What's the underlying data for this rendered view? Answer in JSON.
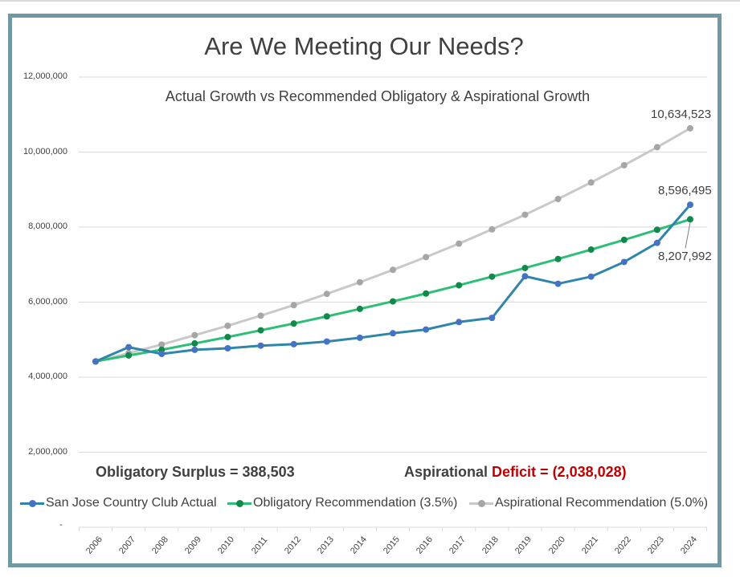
{
  "chart_data": {
    "type": "line",
    "title": "Are We Meeting Our Needs?",
    "subtitle": "Actual Growth vs Recommended Obligatory & Aspirational Growth",
    "xlabel": "",
    "ylabel": "",
    "ylim": [
      0,
      12000000
    ],
    "grid": true,
    "legend_position": "bottom",
    "categories": [
      "2006",
      "2007",
      "2008",
      "2009",
      "2010",
      "2011",
      "2012",
      "2013",
      "2014",
      "2015",
      "2016",
      "2017",
      "2018",
      "2019",
      "2020",
      "2021",
      "2022",
      "2023",
      "2024"
    ],
    "yticks": [
      {
        "value": 2000000,
        "label": "2,000,000"
      },
      {
        "value": 4000000,
        "label": "4,000,000"
      },
      {
        "value": 6000000,
        "label": "6,000,000"
      },
      {
        "value": 8000000,
        "label": "8,000,000"
      },
      {
        "value": 10000000,
        "label": "10,000,000"
      },
      {
        "value": 12000000,
        "label": "12,000,000"
      }
    ],
    "zero_tick_label": "-",
    "series": [
      {
        "name": "Aspirational Recommendation (5.0%)",
        "color": "#c9c9c9",
        "values": [
          4420000,
          4640000,
          4870000,
          5120000,
          5370000,
          5640000,
          5920000,
          6220000,
          6530000,
          6860000,
          7200000,
          7560000,
          7940000,
          8330000,
          8750000,
          9190000,
          9650000,
          10130000,
          10634523
        ]
      },
      {
        "name": "Obligatory Recommendation (3.5%)",
        "color": "#2ebf76",
        "values": [
          4420000,
          4580000,
          4730000,
          4900000,
          5070000,
          5250000,
          5430000,
          5620000,
          5820000,
          6020000,
          6230000,
          6450000,
          6680000,
          6910000,
          7150000,
          7400000,
          7660000,
          7930000,
          8207992
        ]
      },
      {
        "name": "San Jose Country Club Actual",
        "color": "#2f86a8",
        "point_color": "#4472c4",
        "values": [
          4420000,
          4800000,
          4620000,
          4730000,
          4770000,
          4840000,
          4880000,
          4950000,
          5050000,
          5170000,
          5270000,
          5470000,
          5580000,
          6690000,
          6490000,
          6680000,
          7070000,
          7580000,
          8596495
        ]
      }
    ],
    "annotations": [
      {
        "text": "10,634,523",
        "series": 0,
        "category": "2024"
      },
      {
        "text": "8,596,495",
        "series": 2,
        "category": "2024"
      },
      {
        "text": "8,207,992",
        "series": 1,
        "category": "2024"
      }
    ]
  },
  "summary": {
    "obligatory": "Obligatory Surplus = 388,503",
    "aspirational_prefix": "Aspirational ",
    "aspirational_deficit_word": "Deficit",
    "aspirational_equals": " = ",
    "aspirational_value": "(2,038,028)"
  },
  "legend": [
    {
      "label": "San Jose Country Club Actual",
      "color": "#2f86a8",
      "dot": "#4472c4"
    },
    {
      "label": "Obligatory Recommendation (3.5%)",
      "color": "#2ebf76",
      "dot": "#0f8a4a"
    },
    {
      "label": "Aspirational Recommendation (5.0%)",
      "color": "#c9c9c9",
      "dot": "#a6a6a6"
    }
  ]
}
